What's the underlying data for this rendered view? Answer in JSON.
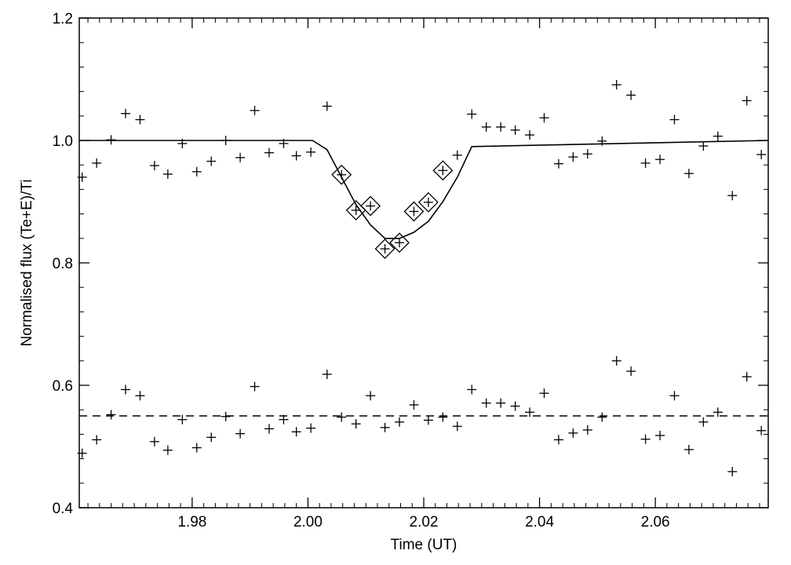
{
  "chart_data": {
    "type": "scatter",
    "title": "",
    "xlabel": "Time (UT)",
    "ylabel": "Normalised flux (Te+E)/Ti",
    "xlim": [
      1.9605,
      2.0795
    ],
    "ylim": [
      0.4,
      1.2
    ],
    "xticks": [
      1.98,
      2.0,
      2.02,
      2.04,
      2.06
    ],
    "xtick_labels": [
      "1.98",
      "2.00",
      "2.02",
      "2.04",
      "2.06"
    ],
    "yticks": [
      0.4,
      0.6,
      0.8,
      1.0,
      1.2
    ],
    "ytick_labels": [
      "0.4",
      "0.6",
      "0.8",
      "1.0",
      "1.2"
    ],
    "grid": false,
    "series": [
      {
        "marker": "plus",
        "x": [
          1.961,
          1.9635,
          1.966,
          1.9685,
          1.971,
          1.9735,
          1.9758,
          1.9783,
          1.9808,
          1.9833,
          1.9858,
          1.9883,
          1.9908,
          1.9933,
          1.9958,
          1.998,
          2.0005,
          2.0033,
          2.0058,
          2.0083,
          2.0108,
          2.0133,
          2.0158,
          2.0183,
          2.0208,
          2.0233,
          2.0258,
          2.0283,
          2.0308,
          2.0333,
          2.0358,
          2.0383,
          2.0408,
          2.0433,
          2.0458,
          2.0483,
          2.0508,
          2.0533,
          2.0558,
          2.0583,
          2.0608,
          2.0633,
          2.0658,
          2.0683,
          2.0708,
          2.0733,
          2.0758,
          2.0783
        ],
        "y": [
          0.94,
          0.963,
          1.001,
          1.044,
          1.034,
          0.959,
          0.945,
          0.995,
          0.949,
          0.966,
          1.0,
          0.972,
          1.049,
          0.98,
          0.995,
          0.975,
          0.981,
          1.056,
          0.944,
          0.886,
          0.893,
          0.823,
          0.833,
          0.884,
          0.899,
          0.951,
          0.976,
          1.043,
          1.022,
          1.022,
          1.017,
          1.009,
          1.037,
          0.962,
          0.973,
          0.978,
          0.999,
          1.091,
          1.074,
          0.963,
          0.969,
          1.034,
          0.946,
          0.991,
          1.007,
          0.91,
          1.065,
          0.977
        ]
      },
      {
        "marker": "plus",
        "x": [
          1.961,
          1.9635,
          1.966,
          1.9685,
          1.971,
          1.9735,
          1.9758,
          1.9783,
          1.9808,
          1.9833,
          1.9858,
          1.9883,
          1.9908,
          1.9933,
          1.9958,
          1.998,
          2.0005,
          2.0033,
          2.0058,
          2.0083,
          2.0108,
          2.0133,
          2.0158,
          2.0183,
          2.0208,
          2.0233,
          2.0258,
          2.0283,
          2.0308,
          2.0333,
          2.0358,
          2.0383,
          2.0408,
          2.0433,
          2.0458,
          2.0483,
          2.0508,
          2.0533,
          2.0558,
          2.0583,
          2.0608,
          2.0633,
          2.0658,
          2.0683,
          2.0708,
          2.0733,
          2.0758,
          2.0783
        ],
        "y": [
          0.489,
          0.511,
          0.552,
          0.593,
          0.583,
          0.508,
          0.494,
          0.544,
          0.498,
          0.515,
          0.549,
          0.521,
          0.598,
          0.529,
          0.544,
          0.524,
          0.53,
          0.618,
          0.548,
          0.537,
          0.583,
          0.531,
          0.54,
          0.568,
          0.543,
          0.548,
          0.533,
          0.593,
          0.571,
          0.571,
          0.566,
          0.556,
          0.587,
          0.511,
          0.522,
          0.527,
          0.548,
          0.64,
          0.623,
          0.512,
          0.518,
          0.583,
          0.495,
          0.54,
          0.556,
          0.459,
          0.614,
          0.526
        ]
      },
      {
        "marker": "diamond-plus",
        "x": [
          2.0058,
          2.0083,
          2.0108,
          2.0133,
          2.0158,
          2.0183,
          2.0208,
          2.0233
        ],
        "y": [
          0.944,
          0.886,
          0.893,
          0.823,
          0.833,
          0.884,
          0.899,
          0.951
        ]
      },
      {
        "type": "line",
        "style": "solid",
        "x": [
          1.9605,
          2.0008,
          2.0033,
          2.0058,
          2.0083,
          2.0108,
          2.0133,
          2.0158,
          2.0183,
          2.0208,
          2.0233,
          2.0258,
          2.0283,
          2.0795
        ],
        "y": [
          1.0,
          1.0,
          0.985,
          0.94,
          0.895,
          0.862,
          0.84,
          0.84,
          0.85,
          0.868,
          0.9,
          0.94,
          0.99,
          1.0
        ]
      },
      {
        "type": "line",
        "style": "dashed",
        "x": [
          1.9605,
          2.0795
        ],
        "y": [
          0.55,
          0.55
        ]
      }
    ]
  }
}
